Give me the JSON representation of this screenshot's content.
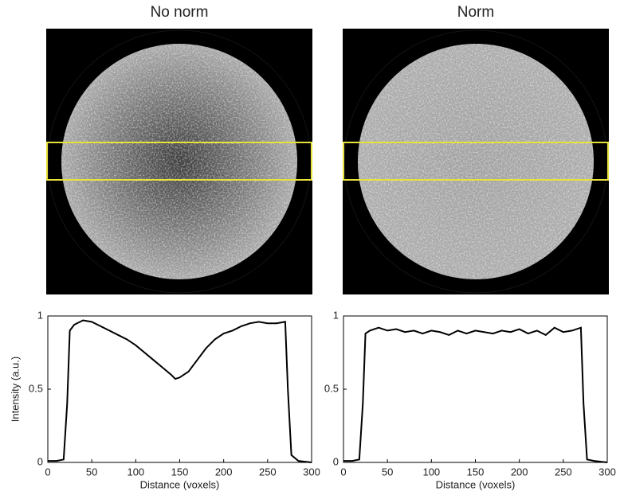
{
  "chart_data": [
    {
      "type": "line",
      "title": "No norm",
      "xlabel": "Distance (voxels)",
      "ylabel": "Intensity (a.u.)",
      "x": [
        0,
        10,
        18,
        22,
        25,
        30,
        40,
        50,
        60,
        70,
        80,
        90,
        100,
        110,
        120,
        130,
        140,
        145,
        150,
        155,
        160,
        170,
        180,
        190,
        200,
        210,
        220,
        230,
        240,
        250,
        260,
        270,
        273,
        277,
        285,
        300
      ],
      "values": [
        0.01,
        0.01,
        0.02,
        0.4,
        0.9,
        0.94,
        0.97,
        0.96,
        0.93,
        0.9,
        0.87,
        0.84,
        0.8,
        0.75,
        0.7,
        0.65,
        0.6,
        0.57,
        0.58,
        0.6,
        0.62,
        0.7,
        0.78,
        0.84,
        0.88,
        0.9,
        0.93,
        0.95,
        0.96,
        0.95,
        0.95,
        0.96,
        0.5,
        0.05,
        0.01,
        0.0
      ],
      "color": "#000000",
      "xlim": [
        0,
        300
      ],
      "ylim": [
        0,
        1
      ],
      "xticks": [
        0,
        50,
        100,
        150,
        200,
        250,
        300
      ],
      "yticks": [
        0,
        0.5,
        1
      ]
    },
    {
      "type": "line",
      "title": "Norm",
      "xlabel": "Distance (voxels)",
      "x": [
        0,
        10,
        18,
        22,
        25,
        30,
        40,
        50,
        60,
        70,
        80,
        90,
        100,
        110,
        120,
        130,
        140,
        150,
        160,
        170,
        180,
        190,
        200,
        210,
        220,
        230,
        240,
        250,
        260,
        270,
        273,
        277,
        285,
        300
      ],
      "values": [
        0.01,
        0.01,
        0.02,
        0.4,
        0.88,
        0.9,
        0.92,
        0.9,
        0.91,
        0.89,
        0.9,
        0.88,
        0.9,
        0.89,
        0.87,
        0.9,
        0.88,
        0.9,
        0.89,
        0.88,
        0.9,
        0.89,
        0.91,
        0.88,
        0.9,
        0.87,
        0.92,
        0.89,
        0.9,
        0.92,
        0.4,
        0.02,
        0.01,
        0.0
      ],
      "color": "#000000",
      "xlim": [
        0,
        300
      ],
      "ylim": [
        0,
        1
      ],
      "xticks": [
        0,
        50,
        100,
        150,
        200,
        250,
        300
      ],
      "yticks": [
        0,
        0.5,
        1
      ]
    }
  ]
}
